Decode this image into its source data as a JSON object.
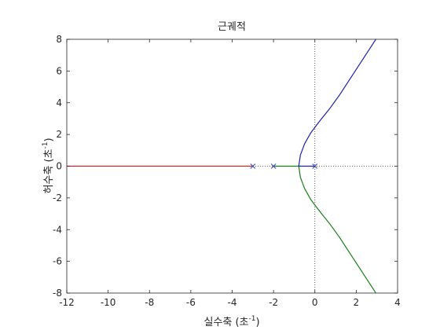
{
  "chart_data": {
    "type": "line",
    "title": "근궤적",
    "xlabel": "실수축 (초",
    "ylabel": "허수축 (초",
    "label_superscript": "-1",
    "label_close": ")",
    "xlim": [
      -12,
      4
    ],
    "ylim": [
      -8,
      8
    ],
    "xticks": [
      -12,
      -10,
      -8,
      -6,
      -4,
      -2,
      0,
      2,
      4
    ],
    "yticks": [
      -8,
      -6,
      -4,
      -2,
      0,
      2,
      4,
      6,
      8
    ],
    "xtick_labels": [
      "-12",
      "-10",
      "-8",
      "-6",
      "-4",
      "-2",
      "0",
      "2",
      "4"
    ],
    "ytick_labels": [
      "-8",
      "-6",
      "-4",
      "-2",
      "0",
      "2",
      "4",
      "6",
      "8"
    ],
    "grid": false,
    "reference_lines": {
      "x": 0,
      "y": 0,
      "style": "dotted"
    },
    "poles": [
      [
        0,
        0
      ],
      [
        -2,
        0
      ],
      [
        -3,
        0
      ]
    ],
    "pole_color": "#3b4cc0",
    "series": [
      {
        "color": "#c0282d",
        "points": [
          [
            -3,
            0
          ],
          [
            -12,
            0
          ]
        ]
      },
      {
        "color": "#1a7d1a",
        "points": [
          [
            -2,
            0
          ],
          [
            -0.78,
            0
          ]
        ]
      },
      {
        "color": "#1a7d1a",
        "points": [
          [
            -0.78,
            0
          ],
          [
            -0.7,
            -0.7
          ],
          [
            -0.5,
            -1.4
          ],
          [
            -0.2,
            -2.1
          ],
          [
            0,
            -2.45
          ],
          [
            0.3,
            -2.95
          ],
          [
            0.7,
            -3.6
          ],
          [
            1.2,
            -4.5
          ],
          [
            1.8,
            -5.7
          ],
          [
            2.4,
            -6.9
          ],
          [
            3,
            -8.1
          ]
        ]
      },
      {
        "color": "#1f1fa8",
        "points": [
          [
            0,
            0
          ],
          [
            -0.78,
            0
          ]
        ]
      },
      {
        "color": "#1f1fa8",
        "points": [
          [
            -0.78,
            0
          ],
          [
            -0.7,
            0.7
          ],
          [
            -0.5,
            1.4
          ],
          [
            -0.2,
            2.1
          ],
          [
            0,
            2.45
          ],
          [
            0.3,
            2.95
          ],
          [
            0.7,
            3.6
          ],
          [
            1.2,
            4.5
          ],
          [
            1.8,
            5.7
          ],
          [
            2.4,
            6.9
          ],
          [
            3,
            8.1
          ]
        ]
      }
    ]
  }
}
